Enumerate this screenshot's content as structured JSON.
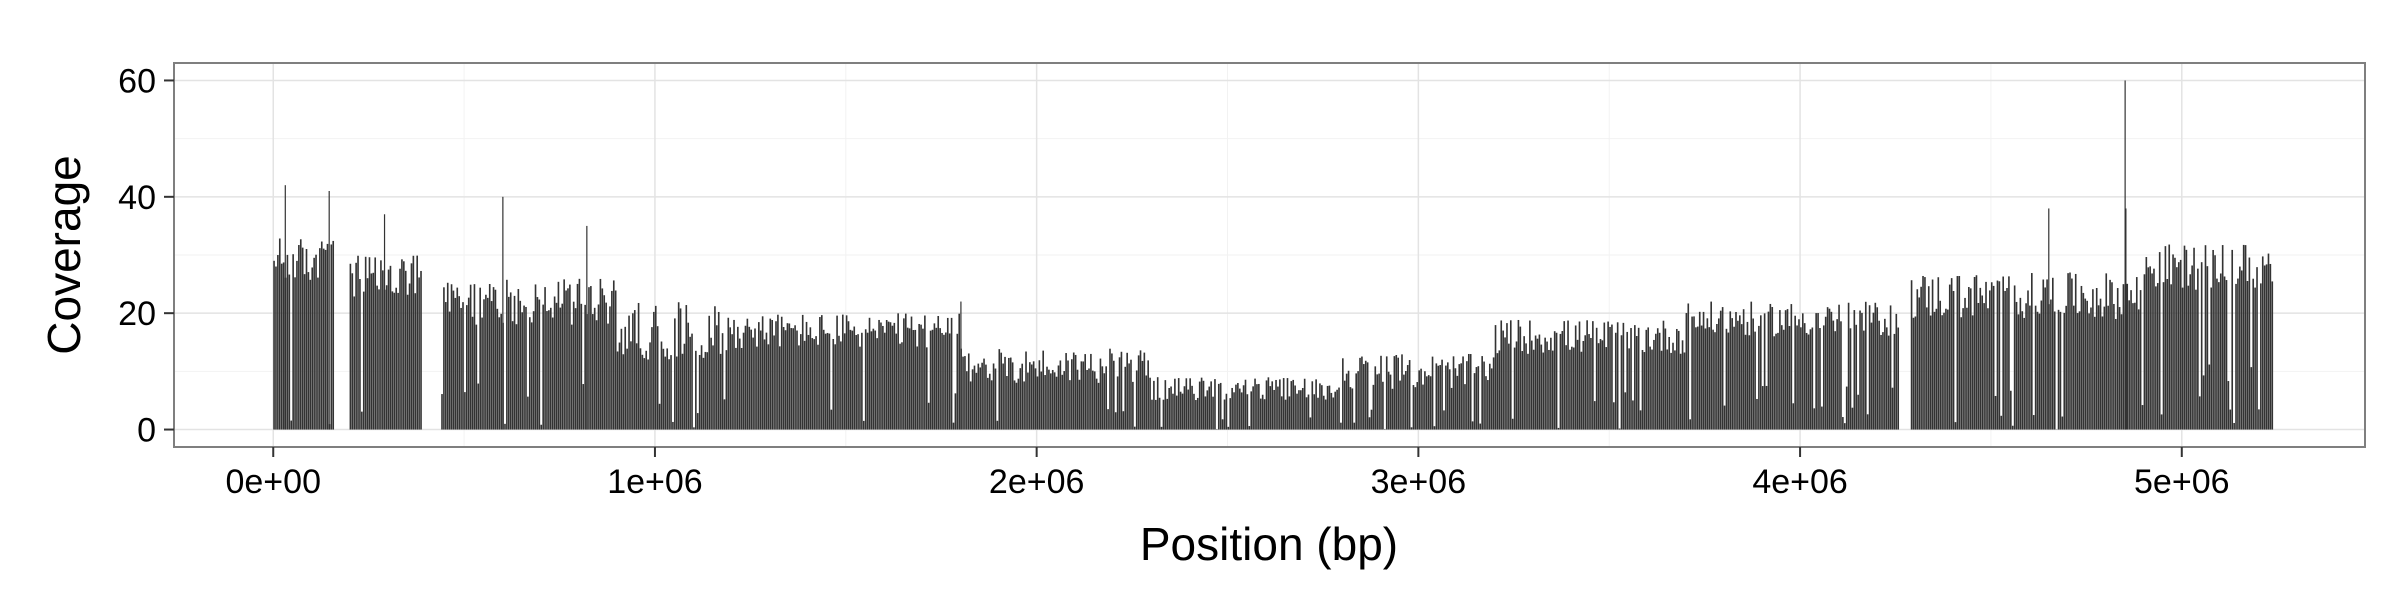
{
  "chart_data": {
    "type": "bar",
    "title": "",
    "xlabel": "Position (bp)",
    "ylabel": "Coverage",
    "xlim": [
      -260000,
      5480000
    ],
    "ylim": [
      -3,
      63
    ],
    "x_ticks": [
      0,
      1000000,
      2000000,
      3000000,
      4000000,
      5000000
    ],
    "x_tick_labels": [
      "0e+00",
      "1e+06",
      "2e+06",
      "3e+06",
      "4e+06",
      "5e+06"
    ],
    "y_ticks": [
      0,
      20,
      40,
      60
    ],
    "y_tick_labels": [
      "0",
      "20",
      "40",
      "60"
    ],
    "grid": true,
    "bar_color": "#333333",
    "bin_width": 5000,
    "coverage_profile": [
      {
        "start": 0,
        "end": 160000,
        "level": 29,
        "spread": 4
      },
      {
        "start": 160000,
        "end": 200000,
        "level": 0,
        "spread": 0
      },
      {
        "start": 200000,
        "end": 390000,
        "level": 26,
        "spread": 4
      },
      {
        "start": 390000,
        "end": 440000,
        "level": 0,
        "spread": 0
      },
      {
        "start": 440000,
        "end": 900000,
        "level": 22,
        "spread": 4
      },
      {
        "start": 900000,
        "end": 1200000,
        "level": 17,
        "spread": 5
      },
      {
        "start": 1200000,
        "end": 1800000,
        "level": 17,
        "spread": 3
      },
      {
        "start": 1800000,
        "end": 2300000,
        "level": 11,
        "spread": 3
      },
      {
        "start": 2300000,
        "end": 2800000,
        "level": 7,
        "spread": 2
      },
      {
        "start": 2800000,
        "end": 3200000,
        "level": 10,
        "spread": 3
      },
      {
        "start": 3200000,
        "end": 3700000,
        "level": 16,
        "spread": 3
      },
      {
        "start": 3700000,
        "end": 4260000,
        "level": 19,
        "spread": 3
      },
      {
        "start": 4260000,
        "end": 4290000,
        "level": 0,
        "spread": 0
      },
      {
        "start": 4290000,
        "end": 4900000,
        "level": 23,
        "spread": 4
      },
      {
        "start": 4900000,
        "end": 5240000,
        "level": 28,
        "spread": 4
      }
    ],
    "peaks": [
      {
        "x": 30000,
        "y": 42
      },
      {
        "x": 145000,
        "y": 41
      },
      {
        "x": 290000,
        "y": 37
      },
      {
        "x": 600000,
        "y": 40
      },
      {
        "x": 820000,
        "y": 35
      },
      {
        "x": 1800000,
        "y": 22
      },
      {
        "x": 4650000,
        "y": 38
      },
      {
        "x": 4850000,
        "y": 60
      },
      {
        "x": 4852000,
        "y": 38
      }
    ]
  }
}
